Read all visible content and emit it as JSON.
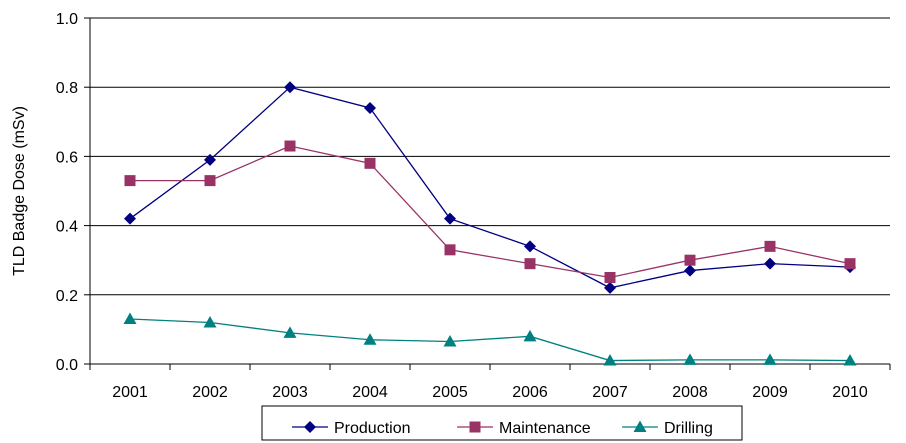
{
  "chart_data": {
    "type": "line",
    "title": "",
    "xlabel": "",
    "ylabel": "TLD Badge Dose (mSv)",
    "categories": [
      "2001",
      "2002",
      "2003",
      "2004",
      "2005",
      "2006",
      "2007",
      "2008",
      "2009",
      "2010"
    ],
    "ylim": [
      0,
      1.0
    ],
    "yticks": [
      "0.0",
      "0.2",
      "0.4",
      "0.6",
      "0.8",
      "1.0"
    ],
    "grid": true,
    "legend_position": "bottom",
    "series": [
      {
        "name": "Production",
        "color": "#000080",
        "marker": "diamond",
        "values": [
          0.42,
          0.59,
          0.8,
          0.74,
          0.42,
          0.34,
          0.22,
          0.27,
          0.29,
          0.28
        ]
      },
      {
        "name": "Maintenance",
        "color": "#993366",
        "marker": "square",
        "values": [
          0.53,
          0.53,
          0.63,
          0.58,
          0.33,
          0.29,
          0.25,
          0.3,
          0.34,
          0.29
        ]
      },
      {
        "name": "Drilling",
        "color": "#008080",
        "marker": "triangle",
        "values": [
          0.13,
          0.12,
          0.09,
          0.07,
          0.065,
          0.08,
          0.01,
          0.012,
          0.012,
          0.01
        ]
      }
    ]
  }
}
